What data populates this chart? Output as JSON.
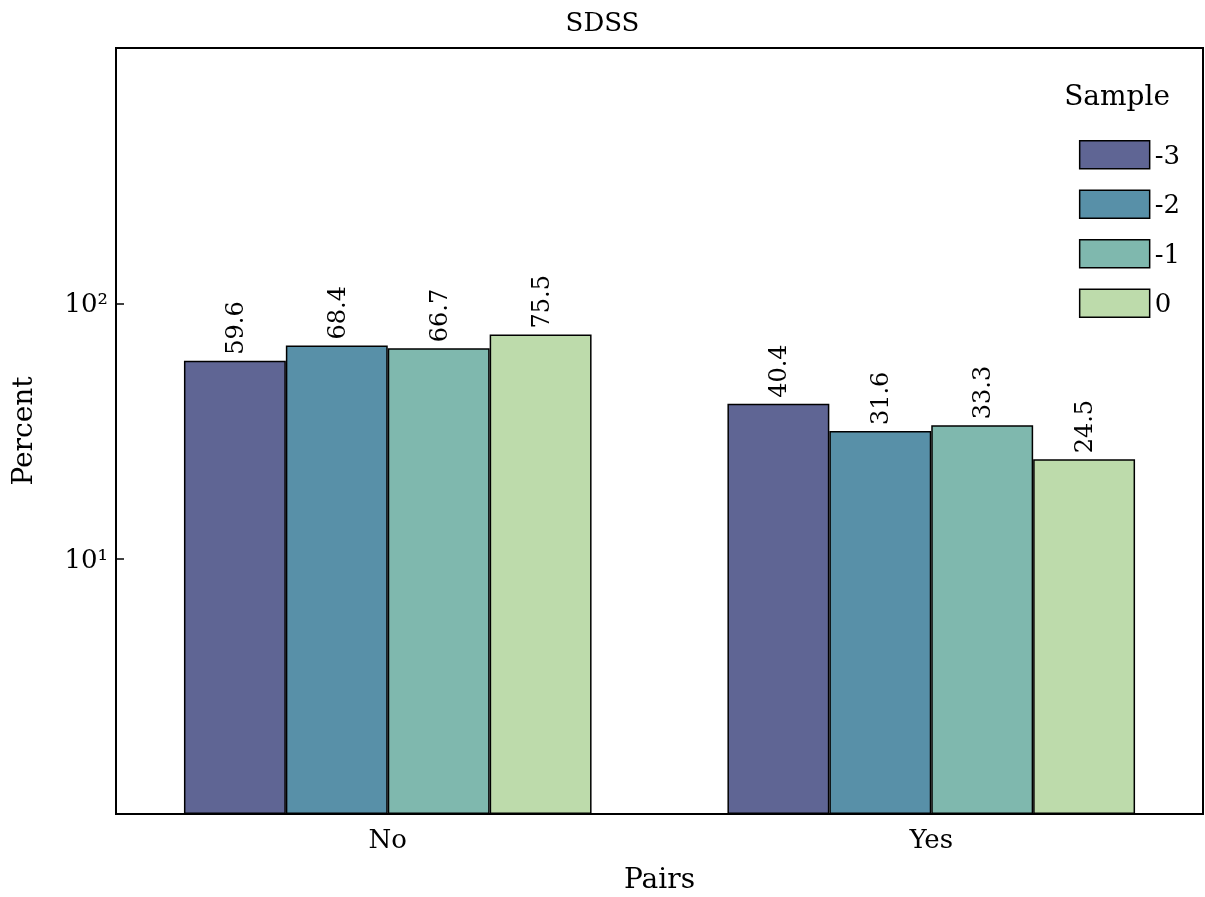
{
  "chart_data": {
    "type": "bar",
    "title": "SDSS",
    "xlabel": "Pairs",
    "ylabel": "Percent",
    "legend_title": "Sample",
    "categories": [
      "No",
      "Yes"
    ],
    "series": [
      {
        "name": "-3",
        "color": "#5f6594",
        "values": [
          59.6,
          40.4
        ]
      },
      {
        "name": "-2",
        "color": "#5890a8",
        "values": [
          68.4,
          31.6
        ]
      },
      {
        "name": "-1",
        "color": "#7fb8ae",
        "values": [
          66.7,
          33.3
        ]
      },
      {
        "name": "0",
        "color": "#bddbab",
        "values": [
          75.5,
          24.5
        ]
      }
    ],
    "log": true,
    "ylim": [
      1,
      1000
    ],
    "yticks": [
      {
        "value": 1,
        "label": null
      },
      {
        "value": 10,
        "label": "10¹"
      },
      {
        "value": 100,
        "label": "10²"
      },
      {
        "value": 1000,
        "label": null
      }
    ],
    "data_labels": true,
    "legend": "top right",
    "grid": false
  }
}
